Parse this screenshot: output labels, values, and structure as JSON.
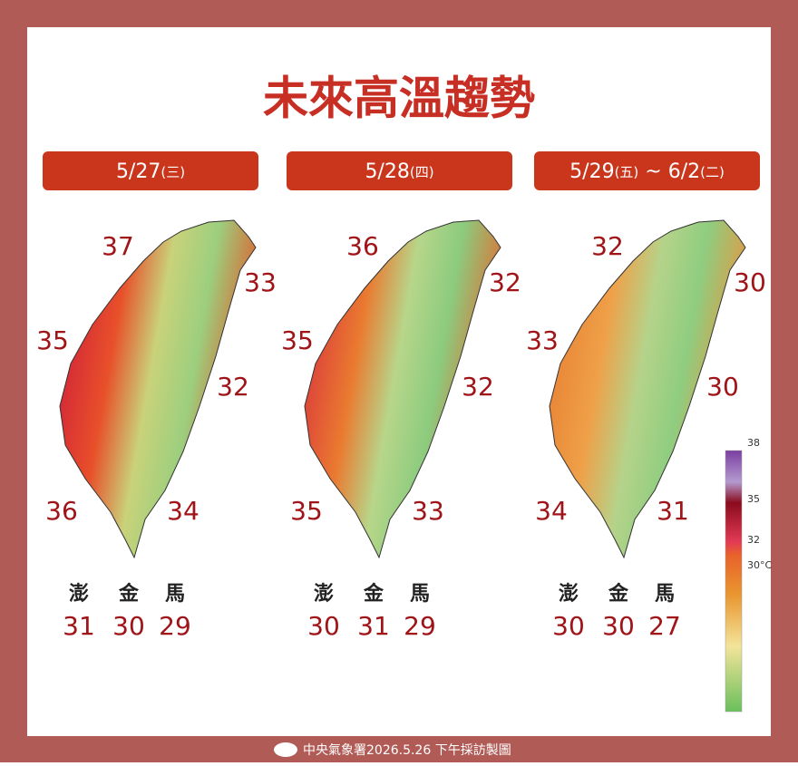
{
  "title": "未來高溫趨勢",
  "panels": [
    {
      "date": [
        {
          "text": "5/27",
          "small": false
        },
        {
          "text": "(三)",
          "small": true
        }
      ],
      "regions": [
        37,
        33,
        35,
        32,
        36,
        34
      ],
      "islands": [
        {
          "name": "澎",
          "temp": 31
        },
        {
          "name": "金",
          "temp": 30
        },
        {
          "name": "馬",
          "temp": 29
        }
      ]
    },
    {
      "date": [
        {
          "text": "5/28",
          "small": false
        },
        {
          "text": "(四)",
          "small": true
        }
      ],
      "regions": [
        36,
        32,
        35,
        32,
        35,
        33
      ],
      "islands": [
        {
          "name": "澎",
          "temp": 30
        },
        {
          "name": "金",
          "temp": 31
        },
        {
          "name": "馬",
          "temp": 29
        }
      ]
    },
    {
      "date": [
        {
          "text": "5/29",
          "small": false
        },
        {
          "text": "(五)",
          "small": true
        },
        {
          "text": " ~ 6/2",
          "small": false
        },
        {
          "text": "(二)",
          "small": true
        }
      ],
      "regions": [
        32,
        30,
        33,
        30,
        34,
        31
      ],
      "islands": [
        {
          "name": "澎",
          "temp": 30
        },
        {
          "name": "金",
          "temp": 30
        },
        {
          "name": "馬",
          "temp": 27
        }
      ]
    }
  ],
  "legend": [
    "38",
    "35",
    "32",
    "30°C"
  ],
  "footer": "中央氣象署2026.5.26 下午採訪製圖"
}
